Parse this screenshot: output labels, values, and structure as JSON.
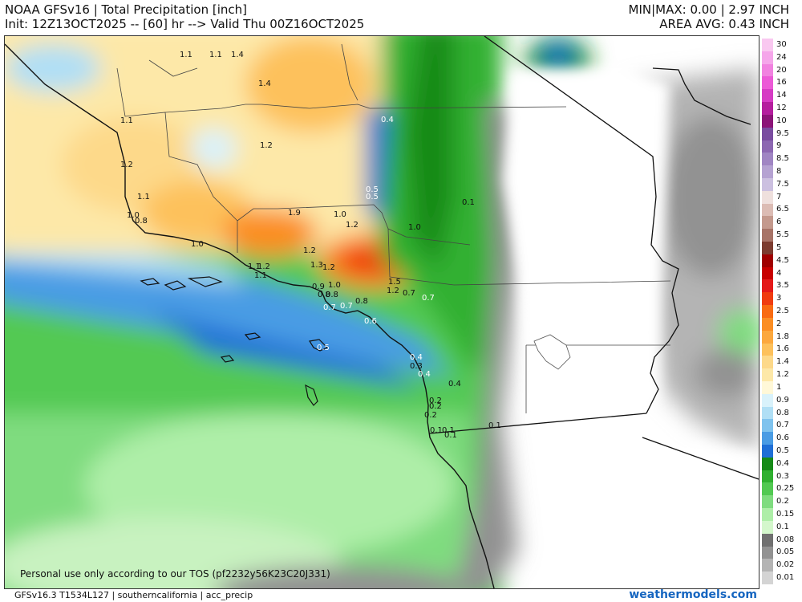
{
  "header": {
    "title": "NOAA GFSv16 | Total Precipitation [inch]",
    "init": "Init: 12Z13OCT2025 -- [60] hr --> Valid Thu 00Z16OCT2025",
    "minmax": "MIN|MAX: 0.00 | 2.97 INCH",
    "area_avg": "AREA AVG: 0.43 INCH"
  },
  "footer": {
    "model_info": "GFSv16.3 T1534L127 | southerncalifornia | acc_precip",
    "brand": "weathermodels.com",
    "tos_note": "Personal use only according to our TOS (pf2232y56K23C20J331)"
  },
  "legend": {
    "entries": [
      {
        "label": "30",
        "color": "#f9c8f0"
      },
      {
        "label": "24",
        "color": "#f5a6ea"
      },
      {
        "label": "20",
        "color": "#f182e0"
      },
      {
        "label": "16",
        "color": "#ec5ad7"
      },
      {
        "label": "14",
        "color": "#d63cc4"
      },
      {
        "label": "12",
        "color": "#b51e9e"
      },
      {
        "label": "10",
        "color": "#8c1478"
      },
      {
        "label": "9.5",
        "color": "#7a4ca0"
      },
      {
        "label": "9",
        "color": "#8d68b2"
      },
      {
        "label": "8.5",
        "color": "#a085c3"
      },
      {
        "label": "8",
        "color": "#b5a2d2"
      },
      {
        "label": "7.5",
        "color": "#ccc0e0"
      },
      {
        "label": "7",
        "color": "#efe0dd"
      },
      {
        "label": "6.5",
        "color": "#dcbcb4"
      },
      {
        "label": "6",
        "color": "#c4998d"
      },
      {
        "label": "5.5",
        "color": "#a87468"
      },
      {
        "label": "5",
        "color": "#7c3c30"
      },
      {
        "label": "4.5",
        "color": "#a00000"
      },
      {
        "label": "4",
        "color": "#c80000"
      },
      {
        "label": "3.5",
        "color": "#e41a1a"
      },
      {
        "label": "3",
        "color": "#f03c10"
      },
      {
        "label": "2.5",
        "color": "#f96b12"
      },
      {
        "label": "2",
        "color": "#fb8e24"
      },
      {
        "label": "1.8",
        "color": "#fca83e"
      },
      {
        "label": "1.6",
        "color": "#fdc15c"
      },
      {
        "label": "1.4",
        "color": "#fdd98a"
      },
      {
        "label": "1.2",
        "color": "#fde8a8"
      },
      {
        "label": "1",
        "color": "#fff8d8"
      },
      {
        "label": "0.9",
        "color": "#d9f2fb"
      },
      {
        "label": "0.8",
        "color": "#b0dff5"
      },
      {
        "label": "0.7",
        "color": "#7fc3ee"
      },
      {
        "label": "0.6",
        "color": "#4a9ce4"
      },
      {
        "label": "0.5",
        "color": "#1f6fd6"
      },
      {
        "label": "0.4",
        "color": "#168a18"
      },
      {
        "label": "0.3",
        "color": "#30b030"
      },
      {
        "label": "0.25",
        "color": "#52c952"
      },
      {
        "label": "0.2",
        "color": "#7fdc7f"
      },
      {
        "label": "0.15",
        "color": "#aeeea8"
      },
      {
        "label": "0.1",
        "color": "#d4f7cc"
      },
      {
        "label": "0.08",
        "color": "#707070"
      },
      {
        "label": "0.05",
        "color": "#929292"
      },
      {
        "label": "0.02",
        "color": "#b4b4b4"
      },
      {
        "label": "0.01",
        "color": "#d4d4d4"
      }
    ]
  },
  "map_labels": {
    "l01": "1.1",
    "l02": "1.1",
    "l03": "1.4",
    "l04": "1.4",
    "l05": "1.1",
    "l06": "1.2",
    "l07": "1.2",
    "l08": "1.1",
    "l09": "1.0",
    "l10": "0.8",
    "l11": "1.9",
    "l12": "1.0",
    "l13": "1.2",
    "l14": "1.0",
    "l15": "1.0",
    "l16": "1.2",
    "l17": "1.1",
    "l18": "1.2",
    "l19": "1.1",
    "l20": "1.3",
    "l21": "1.2",
    "l22": "1.5",
    "l23": "1.2",
    "l24": "0.7",
    "l25": "0.9",
    "l26": "1.0",
    "l27": "0.8",
    "l28": "0.8",
    "l29": "0.7",
    "l30": "0.7",
    "l31": "0.8",
    "l32": "0.6",
    "l33": "0.5",
    "l34": "0.4",
    "l35": "0.3",
    "l36": "0.4",
    "l37": "0.4",
    "l38": "0.2",
    "l39": "0.2",
    "l40": "0.2",
    "l41": "0.1",
    "l42": "0.1",
    "l43": "0.1",
    "l44": "0.1",
    "l45": "0.4",
    "l46": "0.5",
    "l47": "0.5",
    "l48": "0.1",
    "l49": "0.7"
  }
}
